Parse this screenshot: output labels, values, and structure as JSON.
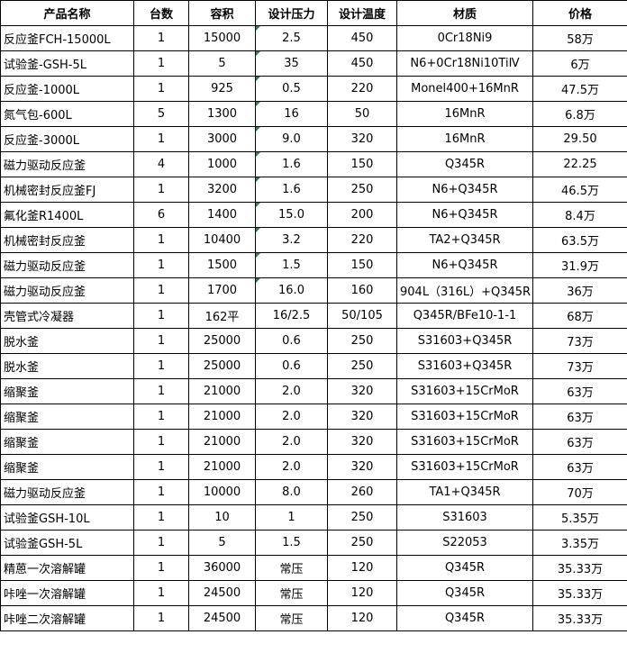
{
  "table": {
    "header": [
      "产品名称",
      "台数",
      "容积",
      "设计压力",
      "设计温度",
      "材质",
      "价格"
    ],
    "rows": [
      [
        "反应釜FCH-15000L",
        "1",
        "15000",
        "2.5",
        "450",
        "0Cr18Ni9",
        "58万"
      ],
      [
        "试验釜-GSH-5L",
        "1",
        "5",
        "35",
        "450",
        "N6+0Cr18Ni10TiⅣ",
        "6万"
      ],
      [
        "反应釜-1000L",
        "1",
        "925",
        "0.5",
        "220",
        "Monel400+16MnR",
        "47.5万"
      ],
      [
        "氮气包-600L",
        "5",
        "1300",
        "16",
        "50",
        "16MnR",
        "6.8万"
      ],
      [
        "反应釜-3000L",
        "1",
        "3000",
        "9.0",
        "320",
        "16MnR",
        "29.50"
      ],
      [
        "磁力驱动反应釜",
        "4",
        "1000",
        "1.6",
        "150",
        "Q345R",
        "22.25"
      ],
      [
        "机械密封反应釜FJ",
        "1",
        "3200",
        "1.6",
        "250",
        "N6+Q345R",
        "46.5万"
      ],
      [
        "氟化釜R1400L",
        "6",
        "1400",
        "15.0",
        "200",
        "N6+Q345R",
        "8.4万"
      ],
      [
        "机械密封反应釜",
        "1",
        "10400",
        "3.2",
        "220",
        "TA2+Q345R",
        "63.5万"
      ],
      [
        "磁力驱动反应釜",
        "1",
        "1500",
        "1.5",
        "150",
        "N6+Q345R",
        "31.9万"
      ],
      [
        "磁力驱动反应釜",
        "1",
        "1700",
        "16.0",
        "160",
        "904L（316L）+Q345R",
        "36万"
      ],
      [
        "壳管式冷凝器",
        "1",
        "162平",
        "16/2.5",
        "50/105",
        "Q345R/BFe10-1-1",
        "68万"
      ],
      [
        "脱水釜",
        "1",
        "25000",
        "0.6",
        "250",
        "S31603+Q345R",
        "73万"
      ],
      [
        "脱水釜",
        "1",
        "25000",
        "0.6",
        "250",
        "S31603+Q345R",
        "73万"
      ],
      [
        "缩聚釜",
        "1",
        "21000",
        "2.0",
        "320",
        "S31603+15CrMoR",
        "63万"
      ],
      [
        "缩聚釜",
        "1",
        "21000",
        "2.0",
        "320",
        "S31603+15CrMoR",
        "63万"
      ],
      [
        "缩聚釜",
        "1",
        "21000",
        "2.0",
        "320",
        "S31603+15CrMoR",
        "63万"
      ],
      [
        "缩聚釜",
        "1",
        "21000",
        "2.0",
        "320",
        "S31603+15CrMoR",
        "63万"
      ],
      [
        "磁力驱动反应釜",
        "1",
        "10000",
        "8.0",
        "260",
        "TA1+Q345R",
        "70万"
      ],
      [
        "试验釜GSH-10L",
        "1",
        "10",
        "1",
        "250",
        "S31603",
        "5.35万"
      ],
      [
        "试验釜GSH-5L",
        "1",
        "5",
        "1.5",
        "250",
        "S22053",
        "3.35万"
      ],
      [
        "精蒽一次溶解罐",
        "1",
        "36000",
        "常压",
        "120",
        "Q345R",
        "35.33万"
      ],
      [
        "咔唑一次溶解罐",
        "1",
        "24500",
        "常压",
        "120",
        "Q345R",
        "35.33万"
      ],
      [
        "咔唑二次溶解罐",
        "1",
        "24500",
        "常压",
        "120",
        "Q345R",
        "35.33万"
      ]
    ]
  }
}
